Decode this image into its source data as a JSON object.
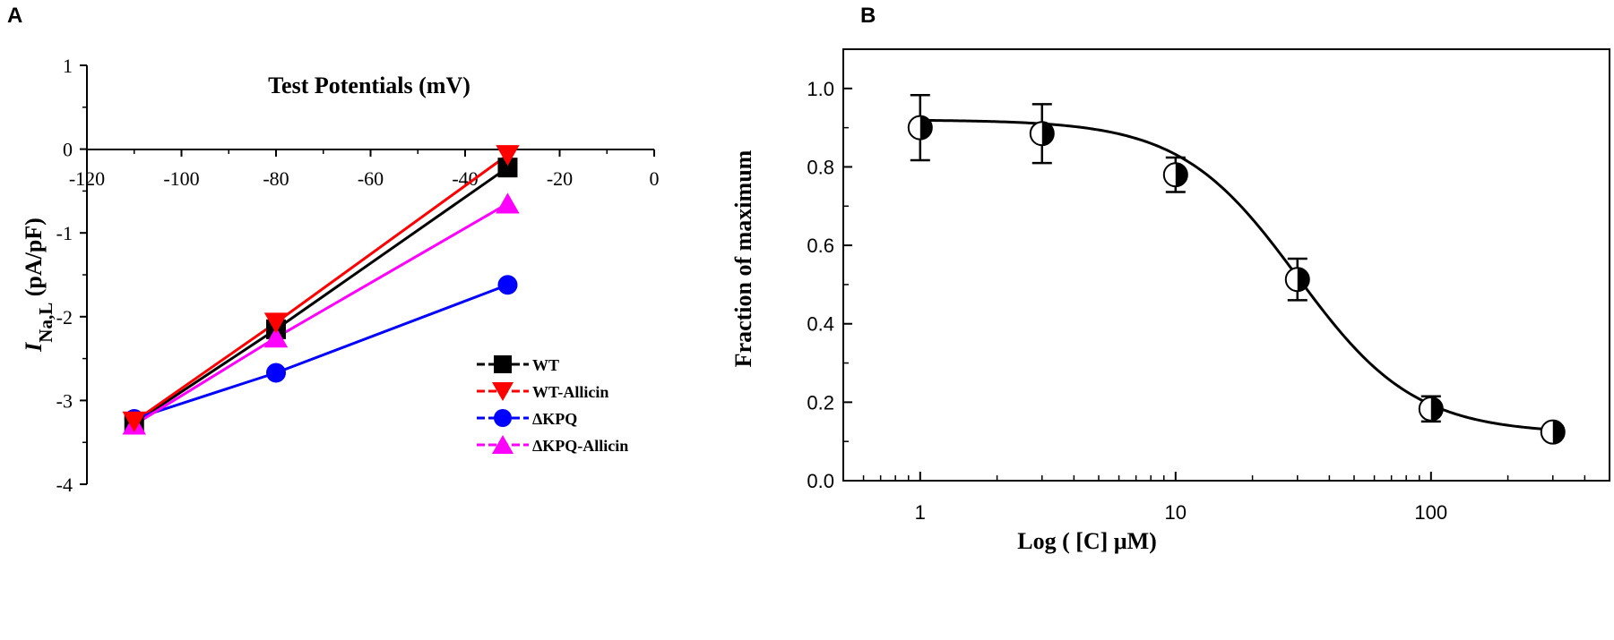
{
  "figure": {
    "panel_a_label": "A",
    "panel_b_label": "B"
  },
  "chart_data": [
    {
      "type": "line",
      "panel": "A",
      "title": "Test Potentials (mV)",
      "ylabel_main": "I",
      "ylabel_sub": "Na,L",
      "ylabel_units": " (pA/pF)",
      "xlim": [
        -120,
        0
      ],
      "ylim": [
        -4,
        1
      ],
      "x_ticks": [
        -120,
        -100,
        -80,
        -60,
        -40,
        -20,
        0
      ],
      "x_tick_labels": [
        "-120",
        "-100",
        "-80",
        "-60",
        "-40",
        "-20",
        "0"
      ],
      "y_ticks": [
        1,
        0,
        -1,
        -2,
        -3,
        -4
      ],
      "y_tick_labels": [
        "1",
        "0",
        "-1",
        "-2",
        "-3",
        "-4"
      ],
      "legend_position": "lower-right",
      "series": [
        {
          "name": "WT",
          "color": "#000000",
          "marker": "square",
          "x": [
            -110,
            -80,
            -31
          ],
          "y": [
            -3.27,
            -2.15,
            -0.22
          ]
        },
        {
          "name": "WT-Allicin",
          "color": "#ff0000",
          "marker": "triangle-down",
          "x": [
            -110,
            -80,
            -31
          ],
          "y": [
            -3.25,
            -2.07,
            -0.07
          ]
        },
        {
          "name": "ΔKPQ",
          "color": "#0000ff",
          "marker": "circle",
          "x": [
            -110,
            -80,
            -31
          ],
          "y": [
            -3.22,
            -2.67,
            -1.62
          ]
        },
        {
          "name": "ΔKPQ-Allicin",
          "color": "#ff00ff",
          "marker": "triangle-up",
          "x": [
            -110,
            -80,
            -31
          ],
          "y": [
            -3.29,
            -2.25,
            -0.65
          ]
        }
      ]
    },
    {
      "type": "scatter",
      "panel": "B",
      "xlabel": "Log ( [C] μM)",
      "ylabel": "Fraction of maximum",
      "xscale": "log",
      "xlim": [
        0.5,
        500
      ],
      "ylim": [
        0,
        1.1
      ],
      "x_ticks": [
        1,
        10,
        100
      ],
      "x_tick_labels": [
        "1",
        "10",
        "100"
      ],
      "y_ticks": [
        0,
        0.2,
        0.4,
        0.6,
        0.8,
        1.0
      ],
      "y_tick_labels": [
        "0.0",
        "0.2",
        "0.4",
        "0.6",
        "0.8",
        "1.0"
      ],
      "points": [
        {
          "x": 1,
          "y": 0.9,
          "err": 0.083
        },
        {
          "x": 3,
          "y": 0.885,
          "err": 0.075
        },
        {
          "x": 10,
          "y": 0.78,
          "err": 0.044
        },
        {
          "x": 30,
          "y": 0.513,
          "err": 0.053
        },
        {
          "x": 100,
          "y": 0.183,
          "err": 0.032
        },
        {
          "x": 300,
          "y": 0.124,
          "err": 0.007
        }
      ],
      "fit": {
        "model": "hill",
        "top": 0.92,
        "bottom": 0.12,
        "ic50": 30,
        "hill_n": 1.9
      }
    }
  ]
}
